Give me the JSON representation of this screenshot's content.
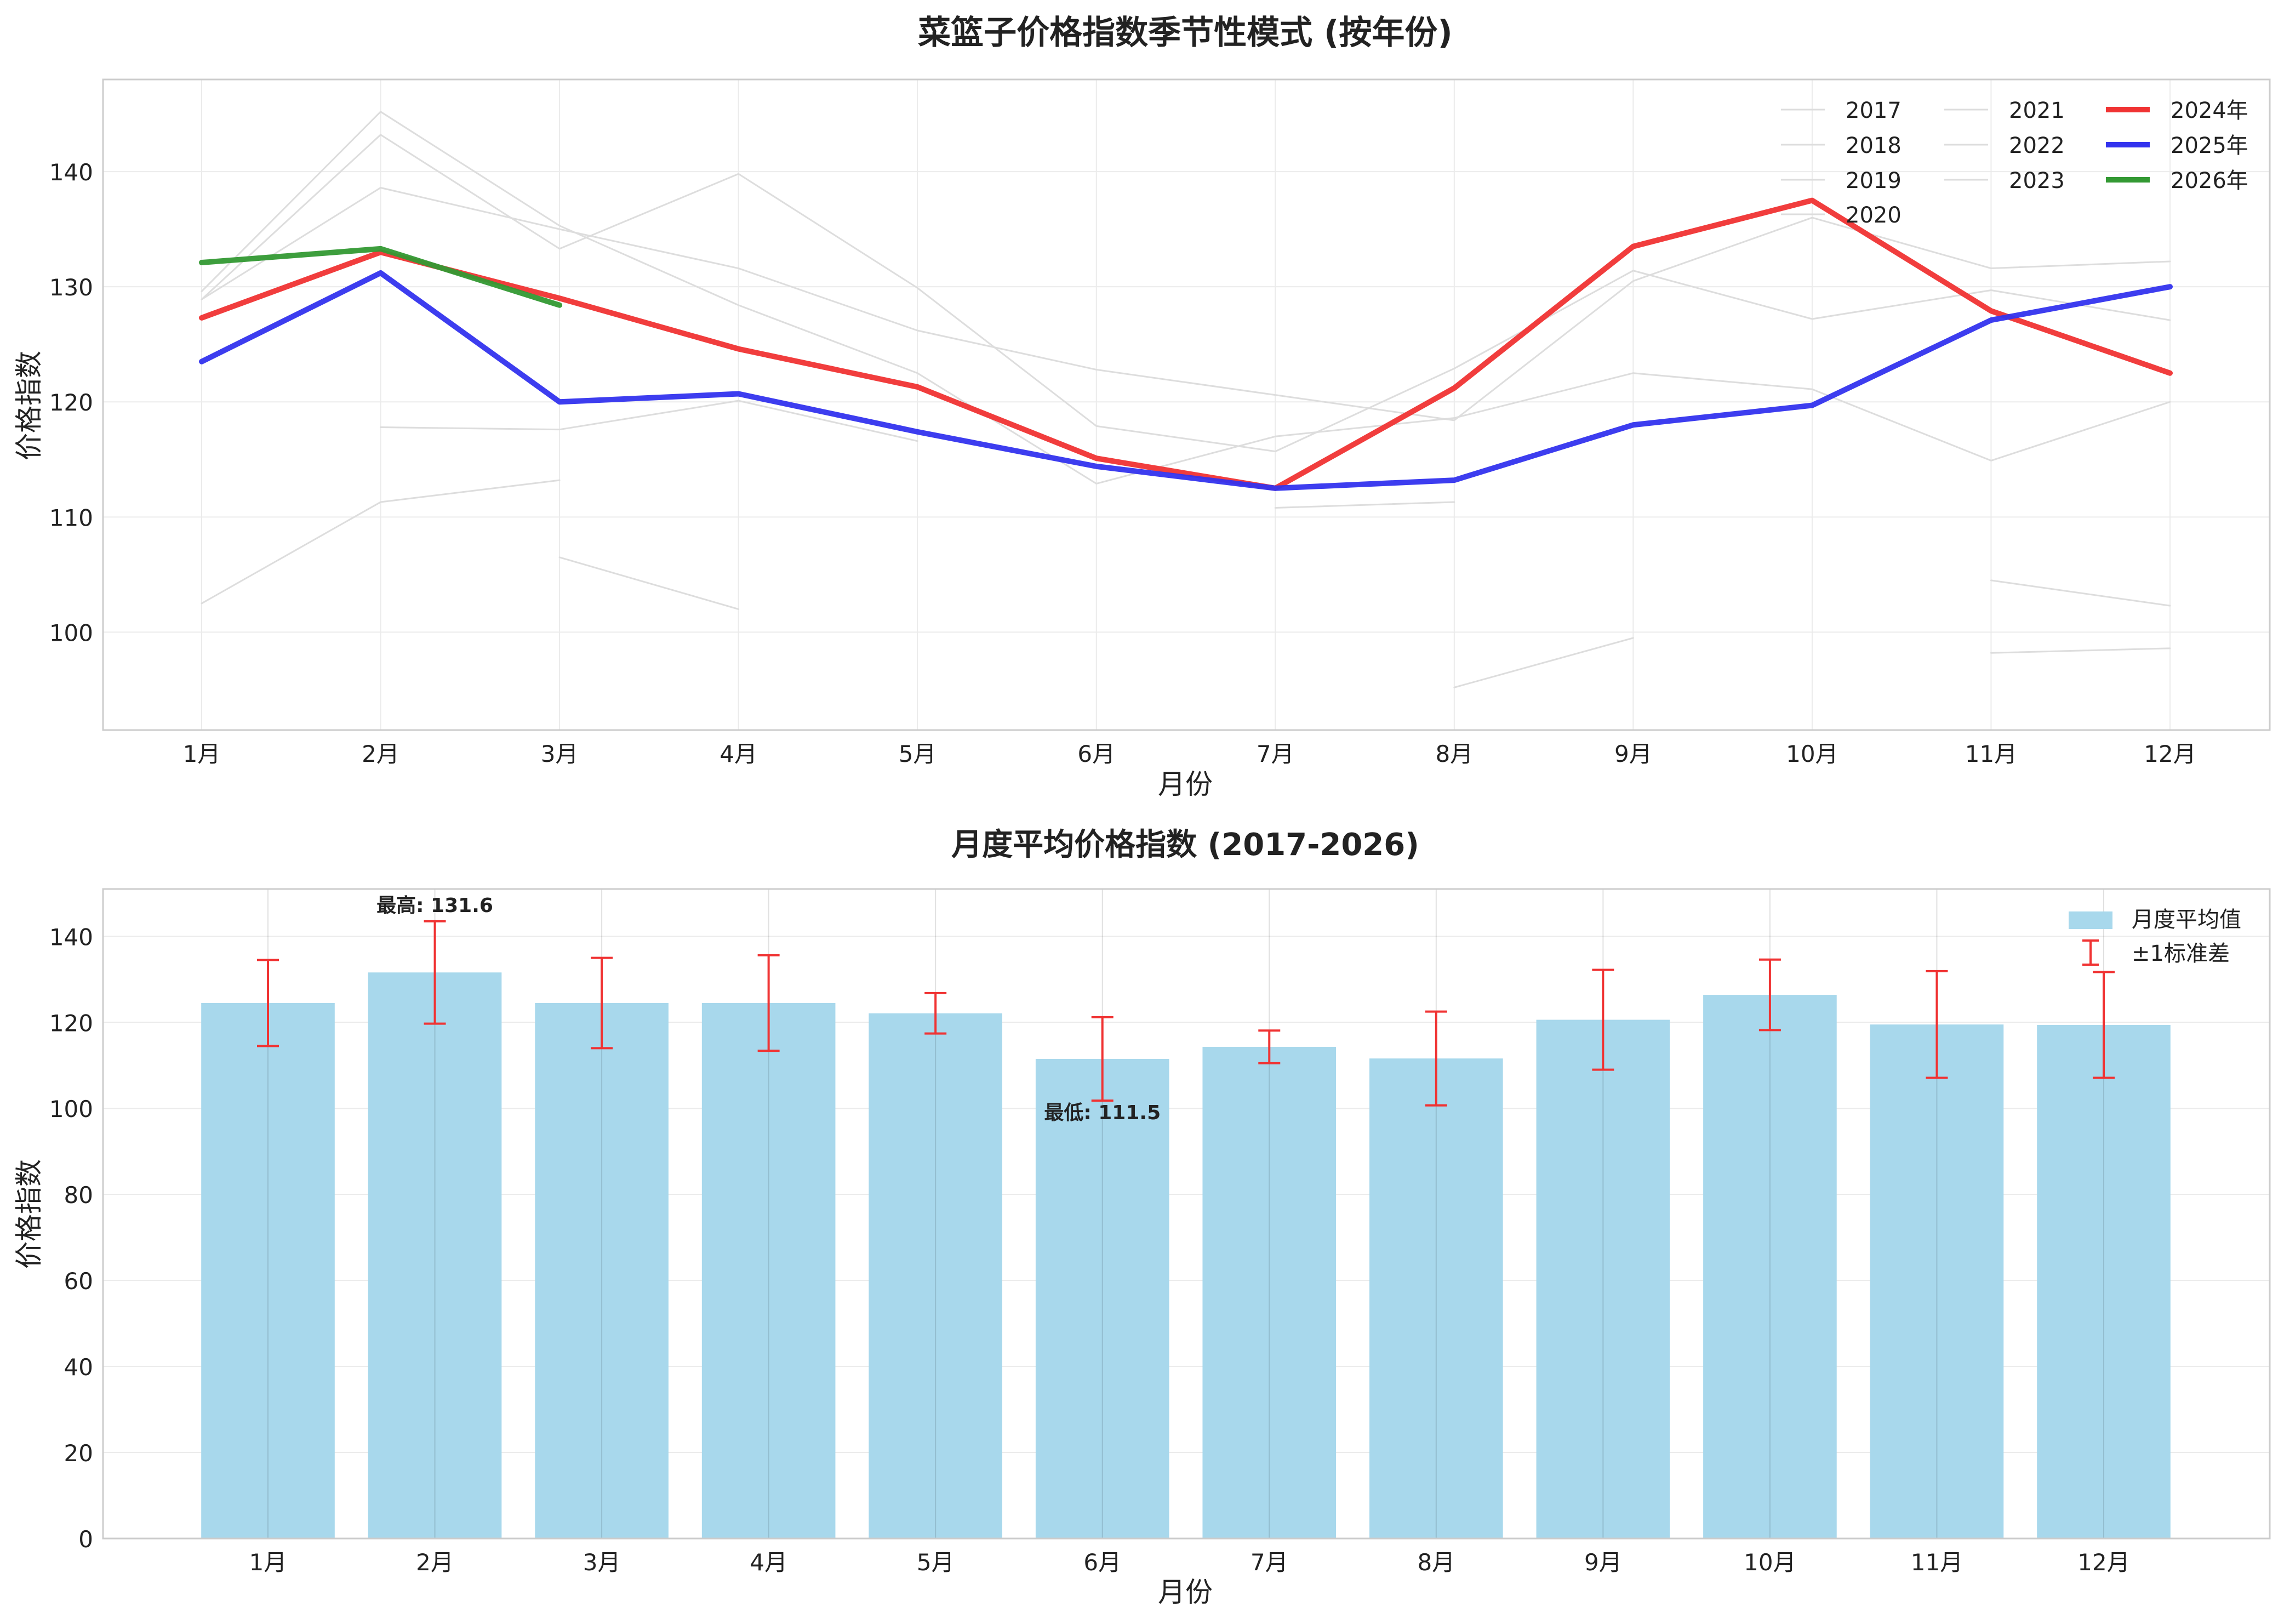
{
  "chart_data": [
    {
      "type": "line",
      "title": "菜篮子价格指数季节性模式 (按年份)",
      "xlabel": "月份",
      "ylabel": "价格指数",
      "categories": [
        "1月",
        "2月",
        "3月",
        "4月",
        "5月",
        "6月",
        "7月",
        "8月",
        "9月",
        "10月",
        "11月",
        "12月"
      ],
      "ylim": [
        91.5,
        148
      ],
      "yticks": [
        100,
        110,
        120,
        130,
        140
      ],
      "grid": true,
      "legend_position": "top-right",
      "series": [
        {
          "name": "2017",
          "color": "#dddddd",
          "values": [
            102.5,
            111.3,
            113.2,
            null,
            null,
            null,
            null,
            null,
            null,
            null,
            null,
            null
          ]
        },
        {
          "name": "2018",
          "color": "#dddddd",
          "values": [
            null,
            117.8,
            117.6,
            120.1,
            116.6,
            null,
            null,
            null,
            null,
            null,
            null,
            null
          ]
        },
        {
          "name": "2019",
          "color": "#dddddd",
          "values": [
            null,
            null,
            106.5,
            102.0,
            null,
            null,
            null,
            null,
            null,
            null,
            null,
            null
          ]
        },
        {
          "name": "2020",
          "color": "#dddddd",
          "values": [
            null,
            null,
            null,
            null,
            null,
            null,
            110.8,
            111.3,
            null,
            null,
            null,
            null
          ]
        },
        {
          "name": "2021",
          "color": "#dddddd",
          "values": [
            null,
            null,
            null,
            null,
            null,
            null,
            null,
            95.2,
            99.5,
            null,
            98.2,
            98.6
          ]
        },
        {
          "name": "2022",
          "color": "#dddddd",
          "values": [
            128.9,
            143.2,
            133.3,
            139.8,
            129.9,
            117.9,
            115.7,
            122.9,
            131.4,
            127.2,
            129.7,
            127.1
          ]
        },
        {
          "name": "2023",
          "color": "#dddddd",
          "values": [
            129.6,
            145.2,
            135.3,
            128.4,
            122.5,
            112.9,
            117.0,
            118.6,
            122.5,
            121.1,
            114.9,
            120.0
          ]
        },
        {
          "name": "",
          "color": "#dddddd",
          "values": [
            128.9,
            138.6,
            135.0,
            131.6,
            126.2,
            122.8,
            120.6,
            118.4,
            130.5,
            136.0,
            131.6,
            132.2
          ]
        },
        {
          "name": "",
          "color": "#dddddd",
          "values": [
            null,
            null,
            null,
            null,
            null,
            null,
            null,
            null,
            null,
            null,
            104.5,
            102.3
          ]
        },
        {
          "name": "2024年",
          "color": "#f03333",
          "values": [
            127.3,
            133.0,
            129.0,
            124.6,
            121.3,
            115.1,
            112.5,
            121.2,
            133.5,
            137.5,
            127.9,
            122.5
          ]
        },
        {
          "name": "2025年",
          "color": "#3333ee",
          "values": [
            123.5,
            131.2,
            120.0,
            120.7,
            117.4,
            114.4,
            112.5,
            113.2,
            118.0,
            119.7,
            127.1,
            130.0
          ]
        },
        {
          "name": "2026年",
          "color": "#339933",
          "values": [
            132.1,
            133.3,
            128.4,
            null,
            null,
            null,
            null,
            null,
            null,
            null,
            null,
            null
          ]
        }
      ]
    },
    {
      "type": "bar",
      "title": "月度平均价格指数 (2017-2026)",
      "xlabel": "月份",
      "ylabel": "价格指数",
      "categories": [
        "1月",
        "2月",
        "3月",
        "4月",
        "5月",
        "6月",
        "7月",
        "8月",
        "9月",
        "10月",
        "11月",
        "12月"
      ],
      "values": [
        124.5,
        131.6,
        124.5,
        124.5,
        122.1,
        111.5,
        114.3,
        111.6,
        120.6,
        126.4,
        119.5,
        119.4
      ],
      "std": [
        10.0,
        11.9,
        10.5,
        11.1,
        4.7,
        9.7,
        3.8,
        10.9,
        11.6,
        8.2,
        12.4,
        12.3
      ],
      "ylim": [
        0,
        151
      ],
      "yticks": [
        0,
        20,
        40,
        60,
        80,
        100,
        120,
        140
      ],
      "grid": true,
      "legend_position": "top-right",
      "bar_color": "#a8d8ec",
      "error_color": "#f03333",
      "legend": [
        "月度平均值",
        "±1标准差"
      ],
      "annotations": {
        "max_text": "最高: 131.6",
        "min_text": "最低: 111.5"
      }
    }
  ]
}
